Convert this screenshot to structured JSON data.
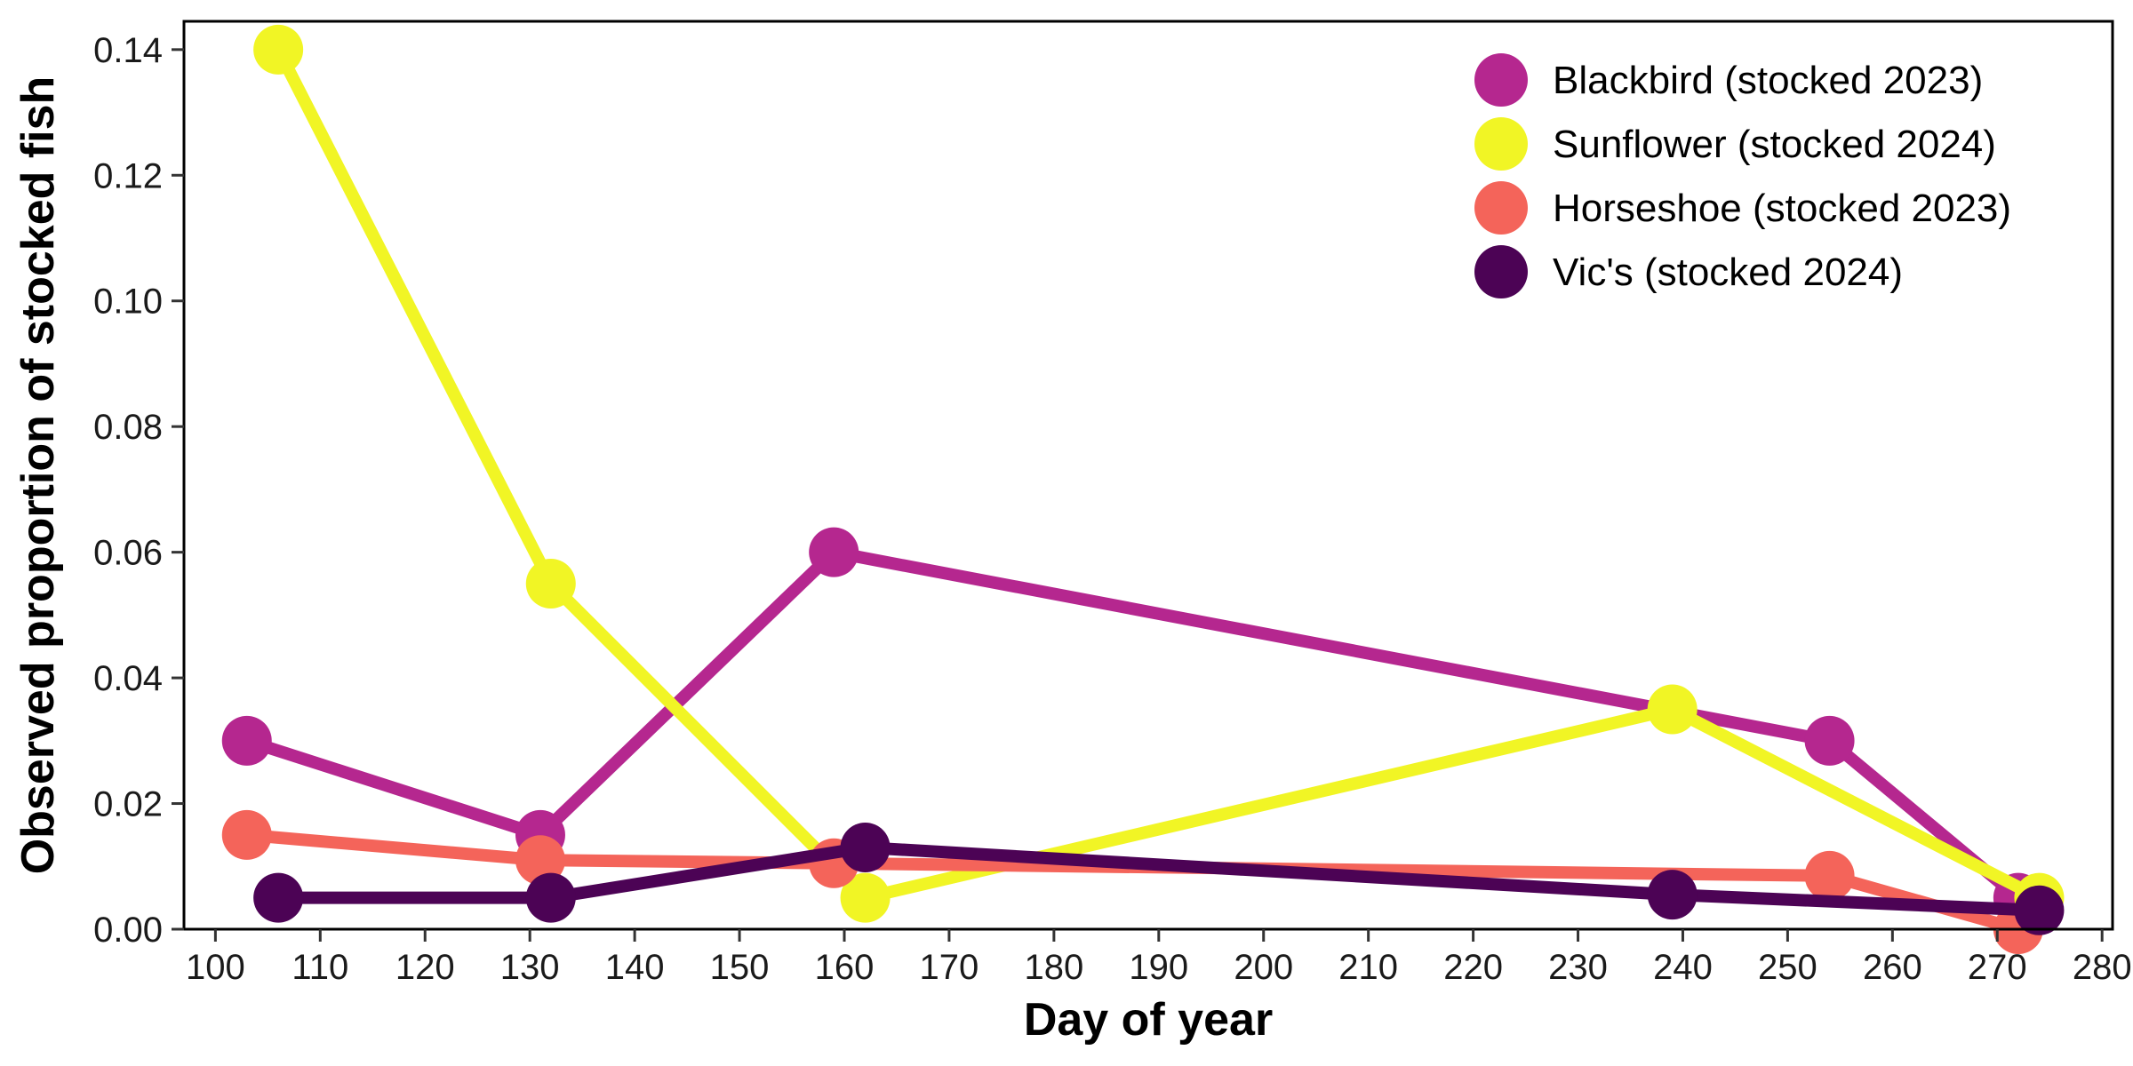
{
  "chart_data": {
    "type": "line",
    "xlabel": "Day of year",
    "ylabel": "Observed proportion of stocked fish",
    "xlim": [
      97,
      281
    ],
    "ylim": [
      0,
      0.1445
    ],
    "x_ticks": [
      100,
      110,
      120,
      130,
      140,
      150,
      160,
      170,
      180,
      190,
      200,
      210,
      220,
      230,
      240,
      250,
      260,
      270,
      280
    ],
    "x_tick_labels": [
      "100",
      "110",
      "120",
      "130",
      "140",
      "150",
      "160",
      "170",
      "180",
      "190",
      "200",
      "210",
      "220",
      "230",
      "240",
      "250",
      "260",
      "270",
      "280"
    ],
    "y_ticks": [
      0,
      0.02,
      0.04,
      0.06,
      0.08,
      0.1,
      0.12,
      0.14
    ],
    "y_tick_labels": [
      "0.00",
      "0.02",
      "0.04",
      "0.06",
      "0.08",
      "0.10",
      "0.12",
      "0.14"
    ],
    "grid": false,
    "legend_position": "top-right",
    "series": [
      {
        "name": "Blackbird (stocked 2023)",
        "color": "#b5278f",
        "x": [
          103,
          131,
          159,
          254,
          272
        ],
        "y": [
          0.03,
          0.015,
          0.06,
          0.03,
          0.005
        ]
      },
      {
        "name": "Sunflower (stocked 2024)",
        "color": "#f1f525",
        "x": [
          106,
          132,
          162,
          239,
          274
        ],
        "y": [
          0.14,
          0.055,
          0.005,
          0.035,
          0.005
        ]
      },
      {
        "name": "Horseshoe (stocked 2023)",
        "color": "#f4645a",
        "x": [
          103,
          131,
          159,
          254,
          272
        ],
        "y": [
          0.015,
          0.011,
          0.0105,
          0.0085,
          0.0
        ]
      },
      {
        "name": "Vic's (stocked 2024)",
        "color": "#4c0355",
        "x": [
          106,
          132,
          162,
          239,
          274
        ],
        "y": [
          0.005,
          0.005,
          0.013,
          0.0055,
          0.003
        ]
      }
    ]
  }
}
